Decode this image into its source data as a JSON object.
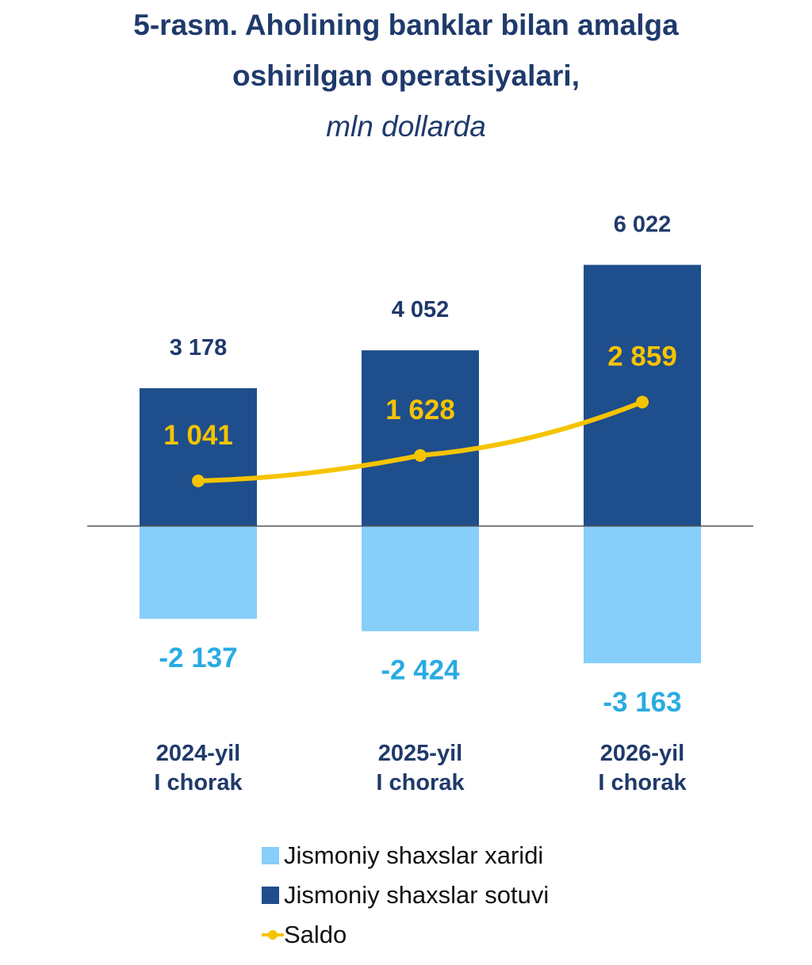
{
  "title": {
    "line1": "5-rasm. Aholining banklar bilan amalga",
    "line2": "oshirilgan operatsiyalari,",
    "unit": "mln dollarda"
  },
  "colors": {
    "title": "#1f3a6b",
    "sotuvi": "#1f4e8c",
    "xaridi": "#87cefa",
    "saldo": "#f5c400",
    "xaridi_label": "#29abe2",
    "axis_label": "#1f3a6b",
    "zero_line": "#555555"
  },
  "chart_data": {
    "type": "bar",
    "categories": [
      [
        "2024-yil",
        "I chorak"
      ],
      [
        "2025-yil",
        "I chorak"
      ],
      [
        "2026-yil",
        "I chorak"
      ]
    ],
    "series": [
      {
        "name": "Jismoniy shaxslar sotuvi",
        "type": "bar",
        "values": [
          3178,
          4052,
          6022
        ],
        "labels": [
          "3 178",
          "4 052",
          "6 022"
        ]
      },
      {
        "name": "Jismoniy shaxslar xaridi",
        "type": "bar",
        "values": [
          -2137,
          -2424,
          -3163
        ],
        "labels": [
          "-2 137",
          "-2 424",
          "-3 163"
        ]
      },
      {
        "name": "Saldo",
        "type": "line",
        "values": [
          1041,
          1628,
          2859
        ],
        "labels": [
          "1 041",
          "1 628",
          "2 859"
        ]
      }
    ],
    "ylim": [
      -3163,
      6022
    ],
    "grid": false,
    "legend_position": "bottom"
  },
  "legend": {
    "items": [
      {
        "label": "Jismoniy shaxslar xaridi",
        "kind": "bar",
        "color": "#87cefa"
      },
      {
        "label": "Jismoniy shaxslar sotuvi",
        "kind": "bar",
        "color": "#1f4e8c"
      },
      {
        "label": "Saldo",
        "kind": "line",
        "color": "#f5c400"
      }
    ]
  }
}
